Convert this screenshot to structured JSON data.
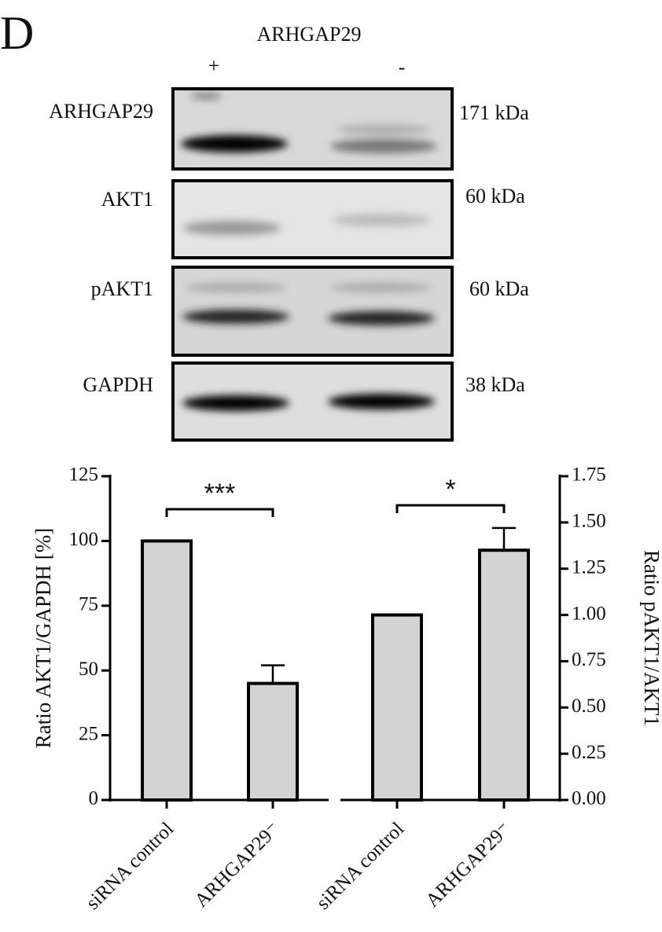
{
  "panel_label": "D",
  "blot": {
    "header": "ARHGAP29",
    "lanes": [
      "+",
      "-"
    ],
    "rows": [
      {
        "label": "ARHGAP29",
        "size": "171 kDa"
      },
      {
        "label": "AKT1",
        "size": "60 kDa"
      },
      {
        "label": "pAKT1",
        "size": "60 kDa"
      },
      {
        "label": "GAPDH",
        "size": "38 kDa"
      }
    ]
  },
  "chart_data": [
    {
      "type": "bar",
      "categories": [
        "siRNA control",
        "ARHGAP29⁻"
      ],
      "values": [
        100,
        45
      ],
      "errors": [
        null,
        7
      ],
      "color": "#d3d3d3",
      "ylabel": "Ratio AKT1/GAPDH [%]",
      "ylim": [
        0,
        125
      ],
      "yticks": [
        0,
        25,
        50,
        75,
        100,
        125
      ],
      "annotation": "***"
    },
    {
      "type": "bar",
      "categories": [
        "siRNA control",
        "ARHGAP29⁻"
      ],
      "values": [
        1.0,
        1.35
      ],
      "errors": [
        null,
        0.12
      ],
      "color": "#d3d3d3",
      "y2label": "Ratio pAKT1/AKT1",
      "y2lim": [
        0,
        1.75
      ],
      "y2ticks": [
        {
          "value": 0,
          "label": "0.00"
        },
        0.25,
        {
          "value": 0.5,
          "label": "0.50"
        },
        0.75,
        {
          "value": 1,
          "label": "1.00"
        },
        1.25,
        {
          "value": 1.5,
          "label": "1.50"
        },
        1.75
      ],
      "annotation": "*"
    }
  ]
}
